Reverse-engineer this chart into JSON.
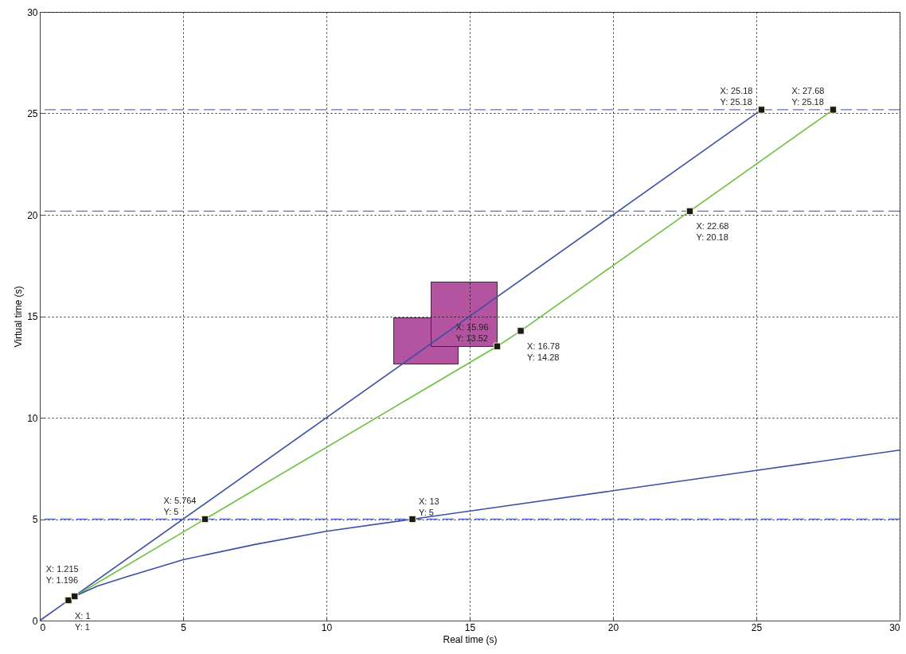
{
  "chart_data": {
    "type": "line",
    "xlabel": "Real time (s)",
    "ylabel": "Virtual time (s)",
    "xlim": [
      0,
      30
    ],
    "ylim": [
      0,
      30
    ],
    "xticks": [
      0,
      5,
      10,
      15,
      20,
      25,
      30
    ],
    "yticks": [
      0,
      5,
      10,
      15,
      20,
      25,
      30
    ],
    "grid": true,
    "line_style": "solid",
    "series": [
      {
        "color": "#3b4fa6",
        "x": [
          0,
          25.18
        ],
        "values": [
          0,
          25.18
        ]
      },
      {
        "color": "#6cc23e",
        "x": [
          1.215,
          5.764,
          15.96,
          16.78,
          22.68,
          27.68
        ],
        "values": [
          1.196,
          5,
          13.52,
          14.28,
          20.18,
          25.18
        ]
      },
      {
        "color": "#3b4fa6",
        "x": [
          1.215,
          2,
          3,
          5,
          7.5,
          10,
          13,
          16,
          20,
          25,
          30
        ],
        "values": [
          1.196,
          1.7,
          2.15,
          3.0,
          3.75,
          4.4,
          5,
          5.6,
          6.4,
          7.4,
          8.4
        ]
      },
      {
        "type": "scatter",
        "marker": "square",
        "color": "#1a1a1a",
        "x": [
          1,
          1.215,
          5.764,
          13,
          15.96,
          16.78,
          22.68,
          25.18,
          27.68
        ],
        "values": [
          1,
          1.196,
          5,
          5,
          13.52,
          14.28,
          20.18,
          25.18,
          25.18
        ]
      }
    ],
    "ref_lines": [
      {
        "axis": "y",
        "value": 5,
        "color": "#5a6fd0",
        "line_style": "dashed"
      },
      {
        "axis": "y",
        "value": 20.18,
        "color": "#5a6fd0",
        "line_style": "dashed"
      },
      {
        "axis": "y",
        "value": 25.18,
        "color": "#5a6fd0",
        "line_style": "dashed"
      }
    ],
    "annotations": [
      {
        "text": "X: 1\nY: 1",
        "x": 1,
        "y": 1
      },
      {
        "text": "X: 1.215\nY: 1.196",
        "x": 1.215,
        "y": 1.196
      },
      {
        "text": "X: 5.764\nY: 5",
        "x": 5.764,
        "y": 5
      },
      {
        "text": "X: 13\nY: 5",
        "x": 13,
        "y": 5
      },
      {
        "text": "X: 15.96\nY: 13.52",
        "x": 15.96,
        "y": 13.52
      },
      {
        "text": "X: 16.78\nY: 14.28",
        "x": 16.78,
        "y": 14.28
      },
      {
        "text": "X: 22.68\nY: 20.18",
        "x": 22.68,
        "y": 20.18
      },
      {
        "text": "X: 25.18\nY: 25.18",
        "x": 25.18,
        "y": 25.18
      },
      {
        "text": "X: 27.68\nY: 25.18",
        "x": 27.68,
        "y": 25.18
      }
    ]
  }
}
